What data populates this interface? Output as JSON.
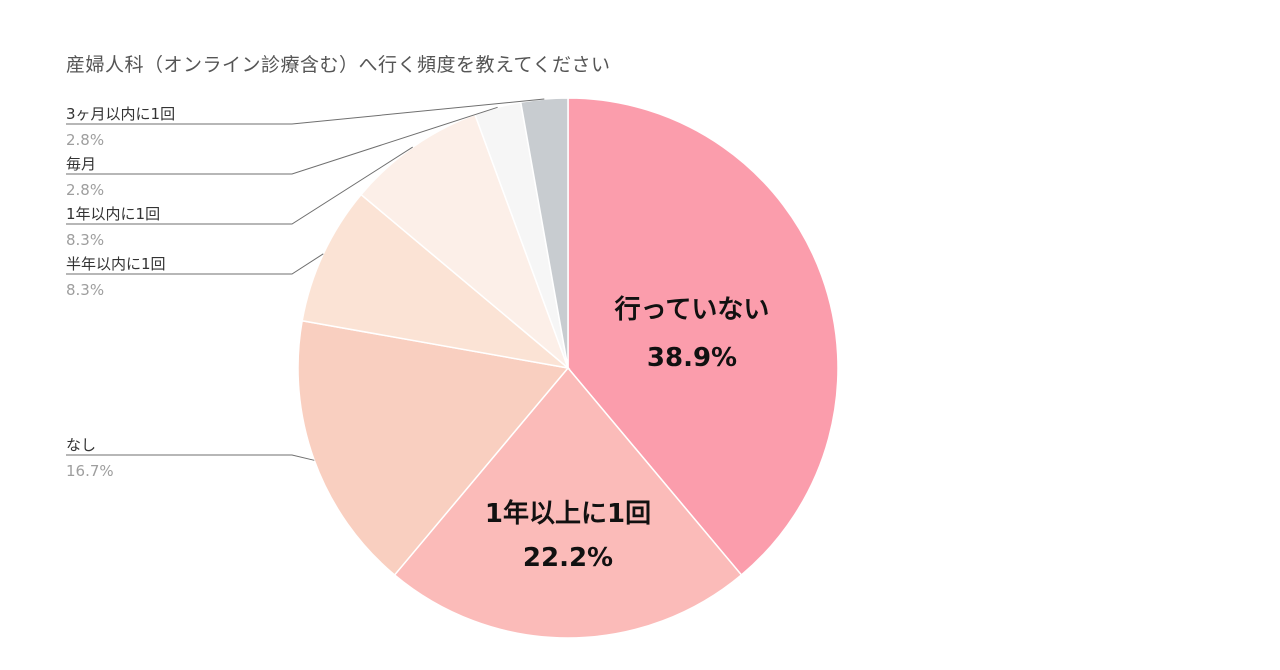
{
  "chart_data": {
    "type": "pie",
    "title": "産婦人科（オンライン診療含む）へ行く頻度を教えてください",
    "slices": [
      {
        "label": "行っていない",
        "value": 38.9,
        "value_label": "38.9%",
        "color": "#fb9dac",
        "label_style": "inside"
      },
      {
        "label": "1年以上に1回",
        "value": 22.2,
        "value_label": "22.2%",
        "color": "#fbbbb9",
        "label_style": "inside"
      },
      {
        "label": "なし",
        "value": 16.7,
        "value_label": "16.7%",
        "color": "#f9cfc0",
        "label_style": "callout"
      },
      {
        "label": "半年以内に1回",
        "value": 8.3,
        "value_label": "8.3%",
        "color": "#fbe3d5",
        "label_style": "callout"
      },
      {
        "label": "1年以内に1回",
        "value": 8.3,
        "value_label": "8.3%",
        "color": "#fcefe8",
        "label_style": "callout"
      },
      {
        "label": "毎月",
        "value": 2.8,
        "value_label": "2.8%",
        "color": "#f6f6f6",
        "label_style": "callout"
      },
      {
        "label": "3ヶ月以内に1回",
        "value": 2.8,
        "value_label": "2.8%",
        "color": "#c8ccd0",
        "label_style": "callout"
      }
    ],
    "start_angle": "12 o'clock",
    "direction": "clockwise",
    "legend": "none"
  }
}
